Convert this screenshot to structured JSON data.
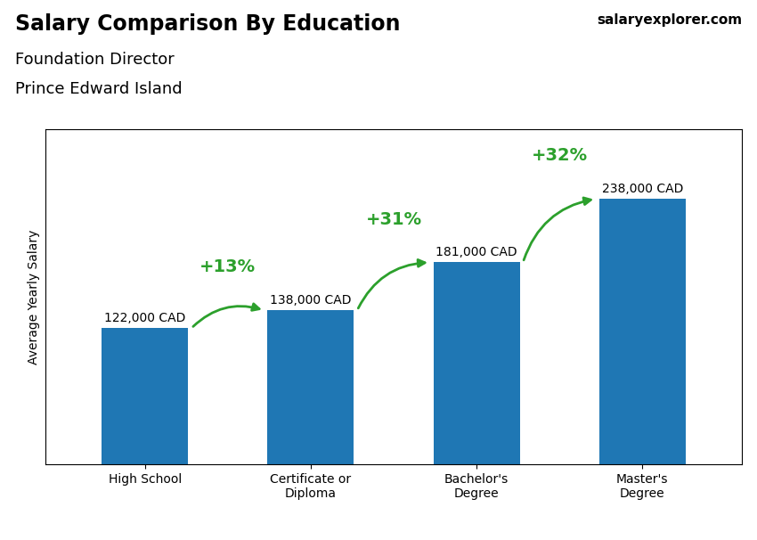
{
  "chart_data": {
    "type": "bar",
    "title": "Salary Comparison By Education",
    "subtitle": [
      "Foundation Director",
      "Prince Edward Island"
    ],
    "ylabel": "Average Yearly Salary",
    "categories": [
      "High School",
      "Certificate or\nDiploma",
      "Bachelor's\nDegree",
      "Master's\nDegree"
    ],
    "values": [
      122000,
      138000,
      181000,
      238000
    ],
    "value_labels": [
      "122,000 CAD",
      "138,000 CAD",
      "181,000 CAD",
      "238,000 CAD"
    ],
    "data_labels": true,
    "ylim": [
      0,
      300000
    ],
    "tick_labels": "x",
    "grid": false,
    "annotations": [
      "+13%",
      "+31%",
      "+32%"
    ],
    "watermark": "salaryexplorer.com"
  }
}
